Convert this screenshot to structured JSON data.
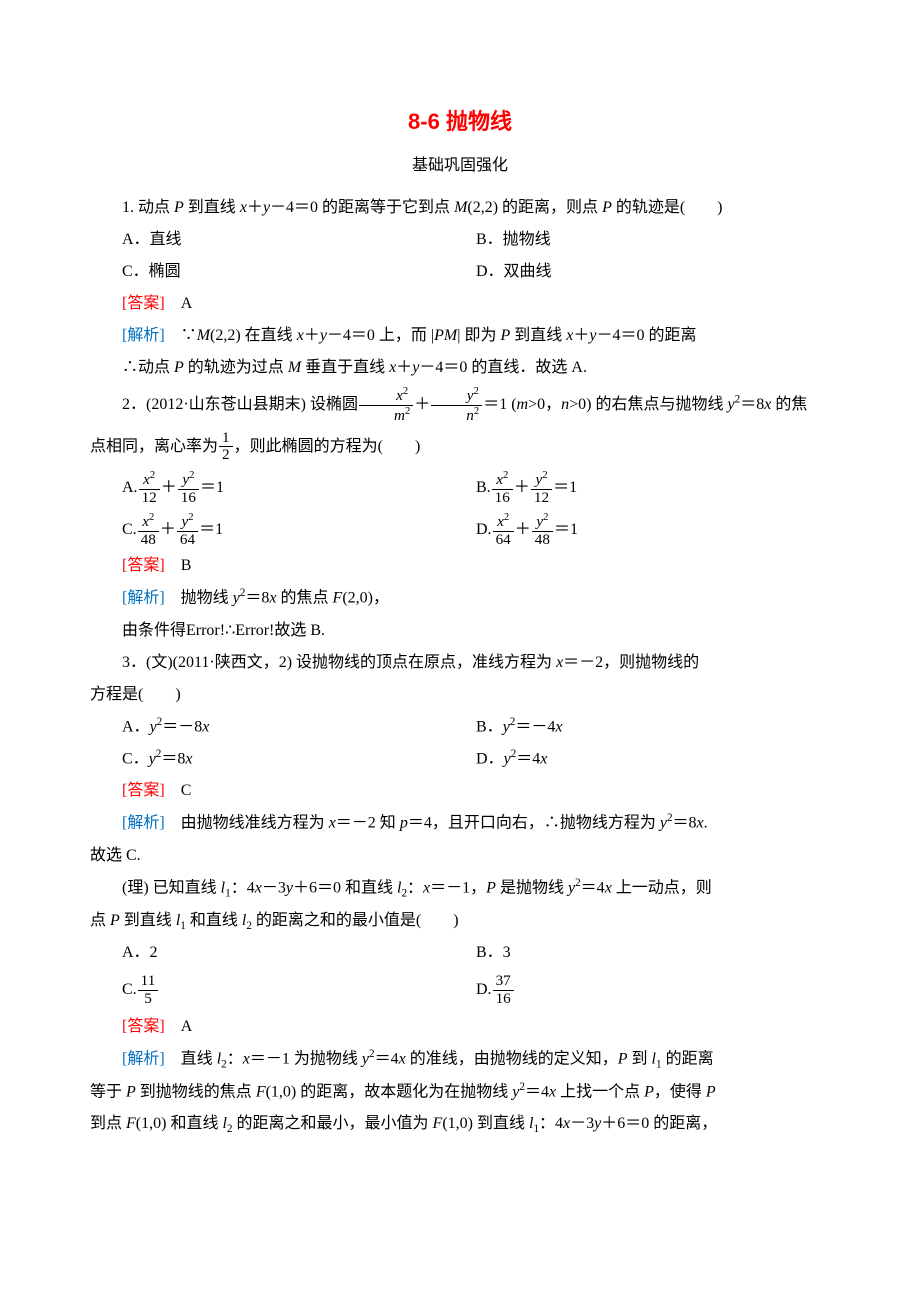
{
  "colors": {
    "title": "#ff0000",
    "answer": "#ff0000",
    "analysis": "#0070c0",
    "text": "#000000",
    "background": "#ffffff"
  },
  "typography": {
    "body_fontsize_pt": 12,
    "title_fontsize_pt": 16,
    "body_font": "SimSun",
    "title_font": "SimHei"
  },
  "title": "8-6 抛物线",
  "subtitle": "基础巩固强化",
  "q1": {
    "stem": "1. 动点 P 到直线 x＋y－4＝0 的距离等于它到点 M(2,2) 的距离，则点 P 的轨迹是(　　)",
    "A": "A．直线",
    "B": "B．抛物线",
    "C": "C．椭圆",
    "D": "D．双曲线",
    "ans_label": "[答案]",
    "ans": "A",
    "ana_label": "[解析]",
    "ana1": "∵M(2,2) 在直线 x＋y－4＝0 上，而 |PM| 即为 P 到直线 x＋y－4＝0 的距离",
    "ana2": "∴动点 P 的轨迹为过点 M 垂直于直线 x＋y－4＝0 的直线．故选 A."
  },
  "q2": {
    "stem_a": "2．(2012·山东苍山县期末) 设椭圆",
    "stem_b": "＝1 (m>0，n>0) 的右焦点与抛物线 y²＝8x 的焦",
    "stem_c": "点相同，离心率为",
    "stem_d": "，则此椭圆的方程为(　　)",
    "frac_main_num1": "x²",
    "frac_main_den1": "m²",
    "frac_main_num2": "y²",
    "frac_main_den2": "n²",
    "ecc_num": "1",
    "ecc_den": "2",
    "A_pre": "A.",
    "A_n1": "x²",
    "A_d1": "12",
    "A_n2": "y²",
    "A_d2": "16",
    "A_post": "＝1",
    "B_pre": "B.",
    "B_n1": "x²",
    "B_d1": "16",
    "B_n2": "y²",
    "B_d2": "12",
    "B_post": "＝1",
    "C_pre": "C.",
    "C_n1": "x²",
    "C_d1": "48",
    "C_n2": "y²",
    "C_d2": "64",
    "C_post": "＝1",
    "D_pre": "D.",
    "D_n1": "x²",
    "D_d1": "64",
    "D_n2": "y²",
    "D_d2": "48",
    "D_post": "＝1",
    "ans_label": "[答案]",
    "ans": "B",
    "ana_label": "[解析]",
    "ana1": "抛物线 y²＝8x 的焦点 F(2,0)，",
    "ana2": "由条件得Error!∴Error!故选 B."
  },
  "q3": {
    "stem1": "3．(文)(2011·陕西文，2) 设抛物线的顶点在原点，准线方程为 x＝－2，则抛物线的",
    "stem2": "方程是(　　)",
    "A": "A．y²＝－8x",
    "B": "B．y²＝－4x",
    "C": "C．y²＝8x",
    "D": "D．y²＝4x",
    "ans_label": "[答案]",
    "ans": "C",
    "ana_label": "[解析]",
    "ana1": "由抛物线准线方程为 x＝－2 知 p＝4，且开口向右，∴抛物线方程为 y²＝8x.",
    "ana2": "故选 C."
  },
  "q3li": {
    "stem1": "(理) 已知直线 l₁：4x－3y＋6＝0 和直线 l₂：x＝－1，P 是抛物线 y²＝4x 上一动点，则",
    "stem2": "点 P 到直线 l₁ 和直线 l₂ 的距离之和的最小值是(　　)",
    "A": "A．2",
    "B": "B．3",
    "C_pre": "C.",
    "C_num": "11",
    "C_den": "5",
    "D_pre": "D.",
    "D_num": "37",
    "D_den": "16",
    "ans_label": "[答案]",
    "ans": "A",
    "ana_label": "[解析]",
    "ana1": "直线 l₂：x＝－1 为抛物线 y²＝4x 的准线，由抛物线的定义知，P 到 l₁ 的距离",
    "ana2": "等于 P 到抛物线的焦点 F(1,0) 的距离，故本题化为在抛物线 y²＝4x 上找一个点 P，使得 P",
    "ana3": "到点 F(1,0) 和直线 l₂ 的距离之和最小，最小值为 F(1,0) 到直线 l₁：4x－3y＋6＝0 的距离，"
  }
}
